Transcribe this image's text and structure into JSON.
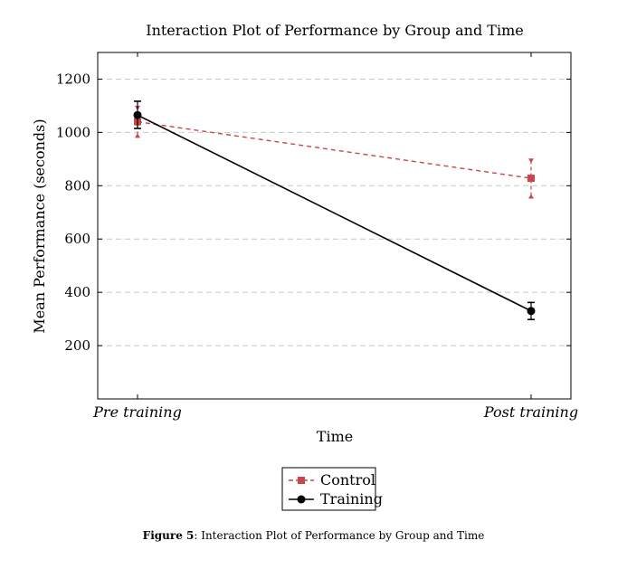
{
  "chart_data": {
    "type": "line",
    "title": "Interaction Plot of Performance by Group and Time",
    "xlabel": "Time",
    "ylabel": "Mean Performance (seconds)",
    "categories": [
      "Pre_training",
      "Post_training"
    ],
    "category_labels": [
      "Pre training",
      "Post training"
    ],
    "ylim": [
      0,
      1300
    ],
    "yticks": [
      200,
      400,
      600,
      800,
      1000,
      1200
    ],
    "grid": "horizontal-dashed",
    "legend_position": "below",
    "series": [
      {
        "name": "Control",
        "values": [
          1040,
          828
        ],
        "error_low": [
          990,
          762
        ],
        "error_high": [
          1090,
          892
        ],
        "color": "#c8454d",
        "line_style": "dashed",
        "marker": "square"
      },
      {
        "name": "Training",
        "values": [
          1065,
          330
        ],
        "error_low": [
          1015,
          298
        ],
        "error_high": [
          1117,
          362
        ],
        "color": "#000000",
        "line_style": "solid",
        "marker": "circle"
      }
    ]
  },
  "caption": {
    "label": "Figure 5",
    "text": ": Interaction Plot of Performance by Group and Time"
  }
}
